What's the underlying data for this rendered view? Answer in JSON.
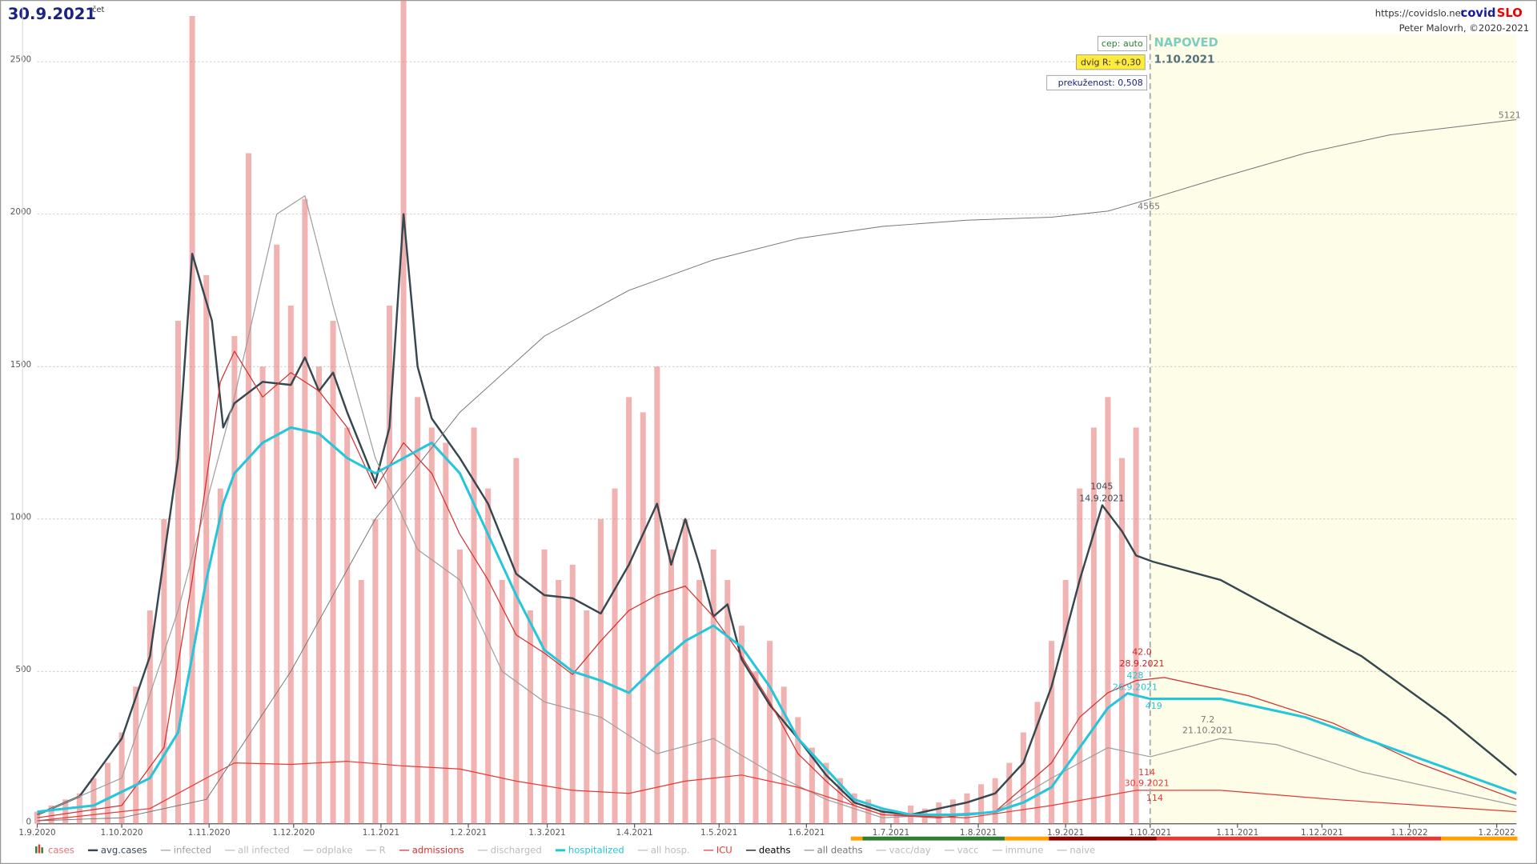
{
  "chart_data": {
    "type": "line",
    "title": "30.9.2021",
    "subtitle": "čet",
    "url": "https://covidslo.net",
    "brand": [
      "covid",
      "SLO"
    ],
    "author": "Peter Malovrh, ©2020-2021",
    "boxes": [
      "cep: auto",
      "dvig R: +0,30",
      "prekuženost: 0,508"
    ],
    "forecast_label": "NAPOVED",
    "forecast_date": "1.10.2021",
    "forecast_start": 395,
    "forecast_color": "#fdfde8",
    "annotations": [
      "1045",
      "14.9.2021",
      "42.0",
      "28.9.2021",
      "428",
      "26.9.2021",
      "419",
      "114",
      "30.9.2021",
      "114",
      "7.2",
      "21.10.2021",
      "4565",
      "5121"
    ],
    "xlim": [
      0,
      525
    ],
    "ylim": [
      0,
      2680
    ],
    "grid": true,
    "xticks": [
      {
        "value": 0,
        "label": "1.9.2020"
      },
      {
        "value": 30,
        "label": "1.10.2020"
      },
      {
        "value": 61,
        "label": "1.11.2020"
      },
      {
        "value": 91,
        "label": "1.12.2020"
      },
      {
        "value": 122,
        "label": "1.1.2021"
      },
      {
        "value": 153,
        "label": "1.2.2021"
      },
      {
        "value": 181,
        "label": "1.3.2021"
      },
      {
        "value": 212,
        "label": "1.4.2021"
      },
      {
        "value": 242,
        "label": "1.5.2021"
      },
      {
        "value": 273,
        "label": "1.6.2021"
      },
      {
        "value": 303,
        "label": "1.7.2021"
      },
      {
        "value": 334,
        "label": "1.8.2021"
      },
      {
        "value": 365,
        "label": "1.9.2021"
      },
      {
        "value": 395,
        "label": "1.10.2021"
      },
      {
        "value": 426,
        "label": "1.11.2021"
      },
      {
        "value": 456,
        "label": "1.12.2021"
      },
      {
        "value": 487,
        "label": "1.1.2022"
      },
      {
        "value": 518,
        "label": "1.2.2022"
      }
    ],
    "yticks": [
      0,
      500,
      1000,
      1500,
      2000,
      2500
    ],
    "series": [
      {
        "name": "cases",
        "kind": "bar",
        "color": "#e57373",
        "x": [
          0,
          5,
          10,
          15,
          20,
          25,
          30,
          35,
          40,
          45,
          50,
          55,
          60,
          65,
          70,
          75,
          80,
          85,
          90,
          95,
          100,
          105,
          110,
          115,
          120,
          125,
          130,
          135,
          140,
          145,
          150,
          155,
          160,
          165,
          170,
          175,
          180,
          185,
          190,
          195,
          200,
          205,
          210,
          215,
          220,
          225,
          230,
          235,
          240,
          245,
          250,
          255,
          260,
          265,
          270,
          275,
          280,
          285,
          290,
          295,
          300,
          305,
          310,
          315,
          320,
          325,
          330,
          335,
          340,
          345,
          350,
          355,
          360,
          365,
          370,
          375,
          380,
          385,
          390
        ],
        "values": [
          40,
          60,
          80,
          100,
          150,
          200,
          300,
          450,
          700,
          1000,
          1650,
          2650,
          1800,
          1100,
          1600,
          2200,
          1500,
          1900,
          1700,
          2050,
          1500,
          1650,
          1300,
          800,
          1000,
          1700,
          2700,
          1400,
          1300,
          1250,
          900,
          1300,
          1100,
          800,
          1200,
          700,
          900,
          800,
          850,
          700,
          1000,
          1100,
          1400,
          1350,
          1500,
          900,
          1000,
          800,
          900,
          800,
          650,
          500,
          600,
          450,
          350,
          250,
          200,
          150,
          100,
          80,
          50,
          40,
          60,
          50,
          70,
          80,
          100,
          130,
          150,
          200,
          300,
          400,
          600,
          800,
          1100,
          1300,
          1400,
          1200,
          1300
        ]
      },
      {
        "name": "avg.cases",
        "kind": "line",
        "width": 2,
        "color": "#37474f",
        "x": [
          0,
          15,
          30,
          40,
          50,
          55,
          62,
          66,
          70,
          80,
          90,
          95,
          100,
          105,
          110,
          120,
          125,
          130,
          135,
          140,
          150,
          160,
          170,
          180,
          190,
          200,
          210,
          220,
          225,
          230,
          235,
          240,
          245,
          250,
          260,
          270,
          280,
          290,
          300,
          310,
          320,
          330,
          340,
          350,
          360,
          370,
          378,
          385,
          390,
          396,
          420,
          440,
          470,
          500,
          525
        ],
        "values": [
          30,
          90,
          280,
          550,
          1200,
          1870,
          1650,
          1300,
          1380,
          1450,
          1440,
          1530,
          1420,
          1480,
          1350,
          1120,
          1300,
          2000,
          1500,
          1330,
          1200,
          1050,
          820,
          750,
          740,
          690,
          850,
          1050,
          850,
          1000,
          850,
          680,
          720,
          540,
          390,
          280,
          160,
          70,
          40,
          30,
          50,
          70,
          100,
          200,
          450,
          800,
          1045,
          960,
          880,
          860,
          800,
          700,
          550,
          350,
          160
        ]
      },
      {
        "name": "infected",
        "kind": "line",
        "width": 1,
        "color": "#9e9e9e",
        "x": [
          0,
          30,
          50,
          70,
          85,
          95,
          105,
          120,
          135,
          150,
          165,
          180,
          200,
          220,
          240,
          260,
          280,
          300,
          340,
          360,
          380,
          395,
          420,
          440,
          470,
          525
        ],
        "values": [
          30,
          150,
          700,
          1400,
          2000,
          2060,
          1700,
          1200,
          900,
          800,
          500,
          400,
          350,
          230,
          280,
          170,
          80,
          20,
          40,
          150,
          250,
          220,
          280,
          260,
          170,
          60
        ]
      },
      {
        "name": "all infected",
        "color": "#bdbdbd"
      },
      {
        "name": "odplake",
        "color": "#bdbdbd"
      },
      {
        "name": "R",
        "color": "#bdbdbd"
      },
      {
        "name": "admissions",
        "kind": "line",
        "width": 1,
        "color": "#d32f2f",
        "x": [
          0,
          30,
          45,
          55,
          65,
          70,
          80,
          90,
          100,
          110,
          120,
          130,
          140,
          150,
          160,
          170,
          180,
          190,
          200,
          210,
          220,
          230,
          240,
          250,
          260,
          270,
          280,
          290,
          300,
          320,
          340,
          360,
          370,
          380,
          390,
          400,
          430,
          460,
          490,
          525
        ],
        "values": [
          20,
          60,
          250,
          800,
          1450,
          1550,
          1400,
          1480,
          1420,
          1300,
          1100,
          1250,
          1150,
          950,
          800,
          620,
          560,
          490,
          600,
          700,
          750,
          780,
          680,
          550,
          400,
          230,
          140,
          60,
          30,
          20,
          40,
          200,
          350,
          430,
          470,
          480,
          420,
          330,
          200,
          80
        ]
      },
      {
        "name": "discharged",
        "color": "#bdbdbd"
      },
      {
        "name": "hospitalized",
        "kind": "line",
        "width": 2.5,
        "color": "#26c6da",
        "x": [
          0,
          20,
          40,
          50,
          60,
          66,
          70,
          80,
          90,
          100,
          110,
          120,
          130,
          140,
          150,
          160,
          170,
          180,
          190,
          200,
          210,
          220,
          230,
          240,
          250,
          260,
          270,
          280,
          290,
          300,
          310,
          320,
          330,
          340,
          350,
          360,
          370,
          380,
          387,
          395,
          420,
          450,
          480,
          525
        ],
        "values": [
          40,
          60,
          150,
          300,
          800,
          1050,
          1150,
          1250,
          1300,
          1280,
          1200,
          1150,
          1200,
          1250,
          1150,
          950,
          750,
          570,
          500,
          470,
          430,
          520,
          600,
          650,
          580,
          450,
          280,
          180,
          80,
          50,
          30,
          30,
          30,
          40,
          70,
          120,
          250,
          380,
          428,
          410,
          410,
          350,
          250,
          100
        ]
      },
      {
        "name": "all hosp.",
        "color": "#bdbdbd"
      },
      {
        "name": "ICU",
        "kind": "line",
        "width": 1,
        "color": "#e53935",
        "x": [
          0,
          40,
          60,
          70,
          90,
          110,
          130,
          150,
          170,
          190,
          210,
          230,
          250,
          270,
          290,
          300,
          330,
          360,
          390,
          420,
          460,
          525
        ],
        "values": [
          10,
          50,
          150,
          200,
          195,
          205,
          190,
          180,
          140,
          110,
          100,
          140,
          160,
          120,
          60,
          30,
          20,
          60,
          110,
          110,
          80,
          40
        ]
      },
      {
        "name": "deaths",
        "color": "#000000"
      },
      {
        "name": "all deaths",
        "kind": "line",
        "width": 0.8,
        "color": "#757575",
        "x": [
          0,
          30,
          60,
          90,
          120,
          150,
          180,
          210,
          240,
          270,
          300,
          330,
          360,
          380,
          395,
          420,
          450,
          480,
          525
        ],
        "values": [
          10,
          20,
          80,
          500,
          1000,
          1350,
          1600,
          1750,
          1850,
          1920,
          1960,
          1980,
          1990,
          2010,
          2050,
          2120,
          2200,
          2260,
          2310
        ]
      },
      {
        "name": "vacc/day",
        "color": "#bdbdbd"
      },
      {
        "name": "vacc",
        "color": "#bdbdbd"
      },
      {
        "name": "immune",
        "color": "#bdbdbd"
      },
      {
        "name": "naive",
        "color": "#bdbdbd"
      }
    ]
  }
}
